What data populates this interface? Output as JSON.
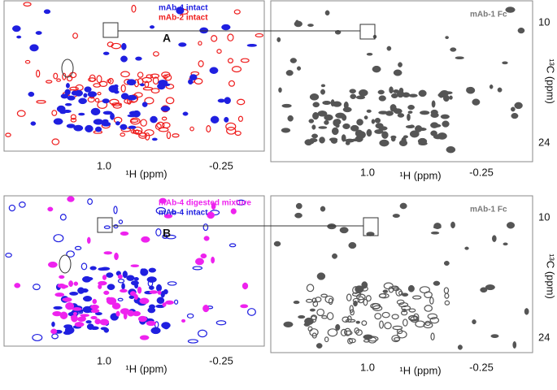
{
  "panels": [
    {
      "letter": "A",
      "legend": [
        {
          "text": "mAb-4 intact",
          "color": "#1f1fe0"
        },
        {
          "text": "mAb-2 intact",
          "color": "#ee1c1c"
        }
      ],
      "reference_label": "mAb-1 Fc",
      "left_x_ticks": [
        "1.0",
        "-0.25"
      ],
      "left_x_label": "¹H (ppm)",
      "right_x_ticks": [
        "1.0",
        "-0.25"
      ],
      "right_x_label": "¹H (ppm)",
      "y_ticks": [
        "10",
        "24"
      ],
      "y_label": "¹³C (ppm)"
    },
    {
      "letter": "B",
      "legend": [
        {
          "text": "mAb-4 digested mixture",
          "color": "#ee22ee"
        },
        {
          "text": "mAb-4 intact",
          "color": "#1f1fe0"
        }
      ],
      "reference_label": "mAb-1 Fc",
      "left_x_ticks": [
        "1.0",
        "-0.25"
      ],
      "left_x_label": "¹H (ppm)",
      "right_x_ticks": [
        "1.0",
        "-0.25"
      ],
      "right_x_label": "¹H (ppm)",
      "y_ticks": [
        "10",
        "24"
      ],
      "y_label": "¹³C (ppm)"
    }
  ]
}
